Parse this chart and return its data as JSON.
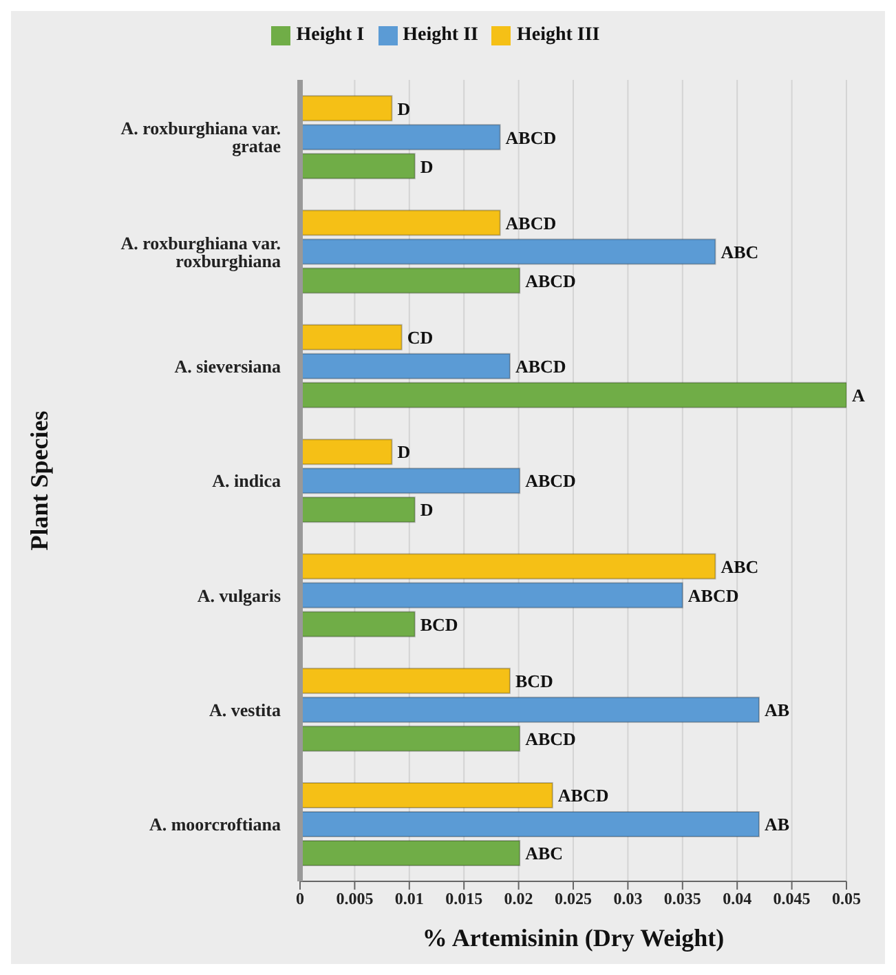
{
  "chart_data": {
    "type": "bar",
    "orientation": "horizontal",
    "xlabel": "% Artemisinin (Dry Weight)",
    "ylabel": "Plant Species",
    "categories": [
      "A. roxburghiana var. gratae",
      "A. roxburghiana var. roxburghiana",
      "A. sieversiana",
      "A. indica",
      "A. vulgaris",
      "A. vestita",
      "A. moorcroftiana"
    ],
    "series": [
      {
        "name": "Height III",
        "color": "#f5c016",
        "values": [
          0.0084,
          0.0183,
          0.0093,
          0.0084,
          0.038,
          0.0192,
          0.0231
        ],
        "value_labels": [
          "D",
          "ABCD",
          "CD",
          "D",
          "ABC",
          "BCD",
          "ABCD"
        ]
      },
      {
        "name": "Height II",
        "color": "#5b9bd5",
        "values": [
          0.0183,
          0.038,
          0.0192,
          0.0201,
          0.035,
          0.042,
          0.042
        ],
        "value_labels": [
          "ABCD",
          "ABC",
          "ABCD",
          "ABCD",
          "ABCD",
          "AB",
          "AB"
        ]
      },
      {
        "name": "Height I",
        "color": "#70ad47",
        "values": [
          0.0105,
          0.0201,
          0.05,
          0.0105,
          0.0105,
          0.0201,
          0.0201
        ],
        "value_labels": [
          "D",
          "ABCD",
          "A",
          "D",
          "BCD",
          "ABCD",
          "ABC"
        ]
      }
    ],
    "xlim": [
      0,
      0.05
    ],
    "xticks": [
      0,
      0.005,
      0.01,
      0.015,
      0.02,
      0.025,
      0.03,
      0.035,
      0.04,
      0.045,
      0.05
    ],
    "grid": "x",
    "legend": "top"
  }
}
